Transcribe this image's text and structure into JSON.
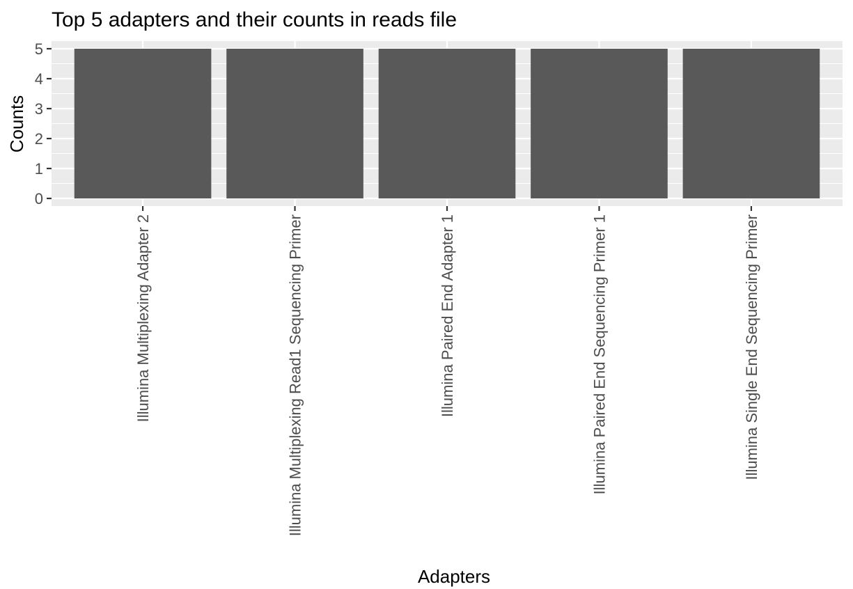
{
  "chart_data": {
    "type": "bar",
    "title": "Top 5 adapters and their counts in reads file",
    "xlabel": "Adapters",
    "ylabel": "Counts",
    "categories": [
      "Illumina Multiplexing Adapter 2",
      "Illumina Multiplexing Read1 Sequencing Primer",
      "Illumina Paired End Adapter 1",
      "Illumina Paired End Sequencing Primer 1",
      "Illumina Single End Sequencing Primer"
    ],
    "values": [
      5,
      5,
      5,
      5,
      5
    ],
    "ylim": [
      0,
      5
    ],
    "yticks": [
      0,
      1,
      2,
      3,
      4,
      5
    ],
    "grid": true,
    "legend": "none",
    "colors": {
      "bar": "#595959",
      "panel": "#ebebeb",
      "grid": "#ffffff",
      "tick": "#333333",
      "tick_label": "#4d4d4d"
    }
  }
}
